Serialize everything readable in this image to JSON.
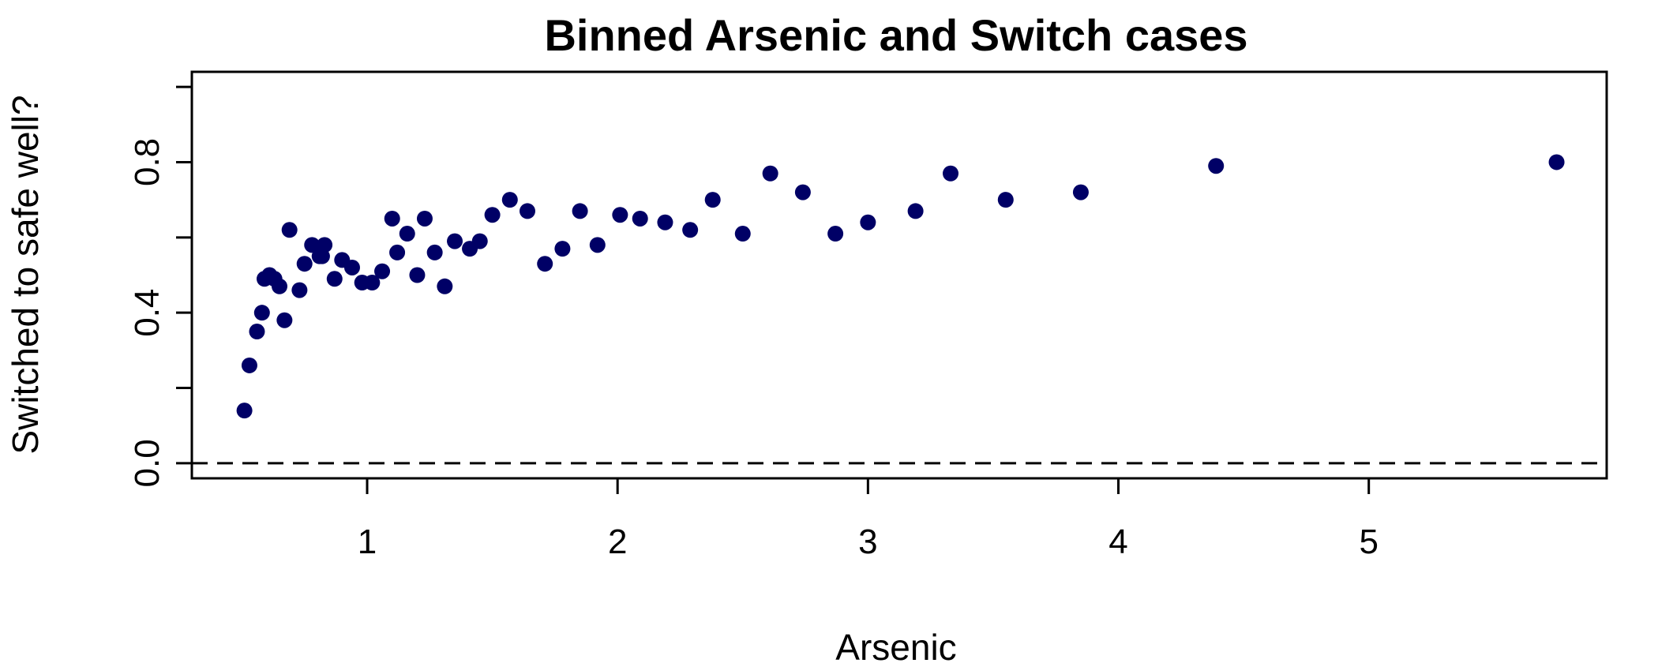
{
  "chart_data": {
    "type": "scatter",
    "title": "Binned Arsenic and Switch cases",
    "xlabel": "Arsenic",
    "ylabel": "Switched to safe well?",
    "xlim": [
      0.3,
      5.95
    ],
    "ylim": [
      -0.04,
      1.04
    ],
    "x_ticks": [
      1,
      2,
      3,
      4,
      5
    ],
    "x_tick_labels": [
      "1",
      "2",
      "3",
      "4",
      "5"
    ],
    "y_ticks": [
      0.0,
      0.2,
      0.4,
      0.6,
      0.8,
      1.0
    ],
    "y_tick_labels": [
      "0.0",
      "",
      "0.4",
      "",
      "0.8",
      ""
    ],
    "reference_line": {
      "y": 0,
      "style": "dashed"
    },
    "point_color": "#000066",
    "grid": false,
    "series": [
      {
        "x": [
          0.51,
          0.53,
          0.56,
          0.58,
          0.59,
          0.61,
          0.63,
          0.65,
          0.67,
          0.69,
          0.73,
          0.75,
          0.78,
          0.81,
          0.82,
          0.83,
          0.87,
          0.9,
          0.94,
          0.98,
          1.02,
          1.06,
          1.1,
          1.12,
          1.16,
          1.2,
          1.23,
          1.27,
          1.31,
          1.35,
          1.41,
          1.45,
          1.5,
          1.57,
          1.64,
          1.71,
          1.78,
          1.85,
          1.92,
          2.01,
          2.09,
          2.19,
          2.29,
          2.38,
          2.5,
          2.61,
          2.74,
          2.87,
          3.0,
          3.19,
          3.33,
          3.55,
          3.85,
          4.39,
          5.75
        ],
        "y": [
          0.14,
          0.26,
          0.35,
          0.4,
          0.49,
          0.5,
          0.49,
          0.47,
          0.38,
          0.62,
          0.46,
          0.53,
          0.58,
          0.55,
          0.55,
          0.58,
          0.49,
          0.54,
          0.52,
          0.48,
          0.48,
          0.51,
          0.65,
          0.56,
          0.61,
          0.5,
          0.65,
          0.56,
          0.47,
          0.59,
          0.57,
          0.59,
          0.66,
          0.7,
          0.67,
          0.53,
          0.57,
          0.67,
          0.58,
          0.66,
          0.65,
          0.64,
          0.62,
          0.7,
          0.61,
          0.77,
          0.72,
          0.61,
          0.64,
          0.67,
          0.77,
          0.7,
          0.72,
          0.79,
          0.8
        ]
      }
    ]
  }
}
